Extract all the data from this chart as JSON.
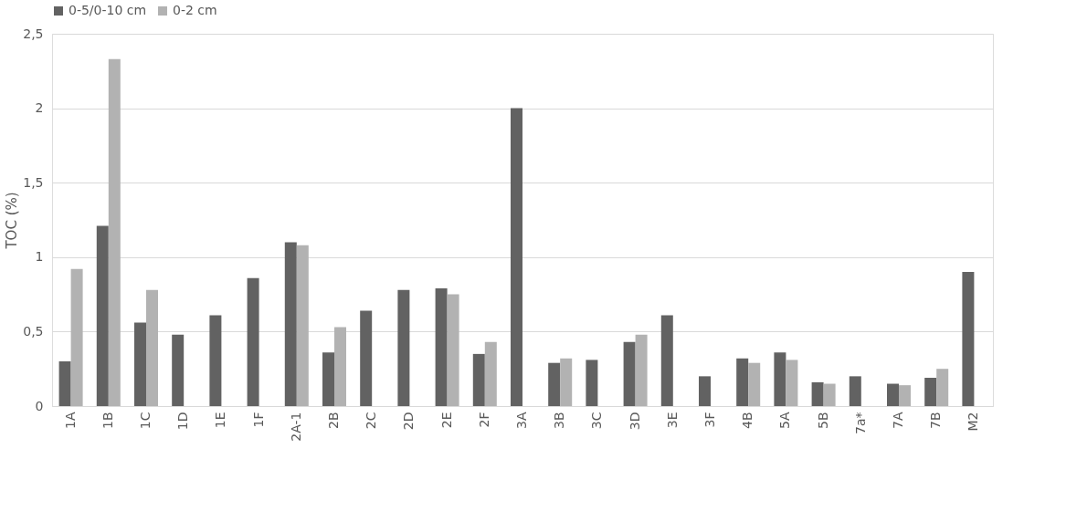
{
  "chart_data": {
    "type": "bar",
    "ylabel": "TOC (%)",
    "categories": [
      "1A",
      "1B",
      "1C",
      "1D",
      "1E",
      "1F",
      "2A-1",
      "2B",
      "2C",
      "2D",
      "2E",
      "2F",
      "3A",
      "3B",
      "3C",
      "3D",
      "3E",
      "3F",
      "4B",
      "5A",
      "5B",
      "7a*",
      "7A",
      "7B",
      "M2"
    ],
    "series": [
      {
        "name": "0-5/0-10 cm",
        "color": "#626262",
        "values": [
          0.3,
          1.21,
          0.56,
          0.48,
          0.61,
          0.86,
          1.1,
          0.36,
          0.64,
          0.78,
          0.79,
          0.35,
          2.0,
          0.29,
          0.31,
          0.43,
          0.61,
          0.2,
          0.32,
          0.36,
          0.16,
          0.2,
          0.15,
          0.19,
          0.9
        ]
      },
      {
        "name": "0-2 cm",
        "color": "#b2b2b2",
        "values": [
          0.92,
          2.33,
          0.78,
          null,
          null,
          null,
          1.08,
          0.53,
          null,
          null,
          0.75,
          0.43,
          null,
          0.32,
          null,
          0.48,
          null,
          null,
          0.29,
          0.31,
          0.15,
          null,
          0.14,
          0.25,
          null
        ]
      }
    ],
    "ylim": [
      0,
      2.5
    ],
    "yticks": [
      0,
      {
        "value": 0.5,
        "label": "0,5"
      },
      1,
      {
        "value": 1.5,
        "label": "1,5"
      },
      2,
      {
        "value": 2.5,
        "label": "2,5"
      }
    ],
    "grid": "y",
    "legend": "top"
  }
}
